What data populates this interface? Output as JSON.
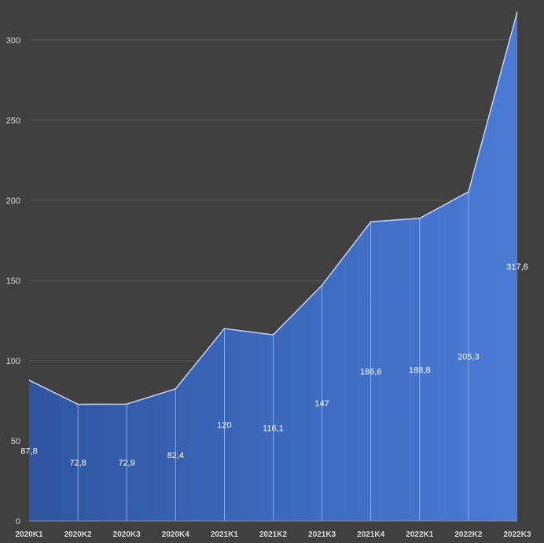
{
  "chart_data": {
    "type": "area",
    "categories": [
      "2020K1",
      "2020K2",
      "2020K3",
      "2020K4",
      "2021K1",
      "2021K2",
      "2021K3",
      "2021K4",
      "2022K1",
      "2022K2",
      "2022K3"
    ],
    "values": [
      87.8,
      72.8,
      72.9,
      82.4,
      120,
      116.1,
      147,
      186.6,
      188.8,
      205.3,
      317.6
    ],
    "data_labels": [
      "87,8",
      "72,8",
      "72,9",
      "82,4",
      "120",
      "116,1",
      "147",
      "186,6",
      "188,8",
      "205,3",
      "317,6"
    ],
    "y_ticks": [
      0,
      50,
      100,
      150,
      200,
      250,
      300
    ],
    "ylim": [
      0,
      320
    ],
    "title": "",
    "xlabel": "",
    "ylabel": "",
    "grid": true,
    "legend": "none",
    "colors": {
      "background": "#404040",
      "fill_left": "#2f55a0",
      "fill_right": "#4a7bd6",
      "line": "#c6d3ee",
      "gridline": "#595959",
      "text": "#d9d9d9"
    }
  }
}
